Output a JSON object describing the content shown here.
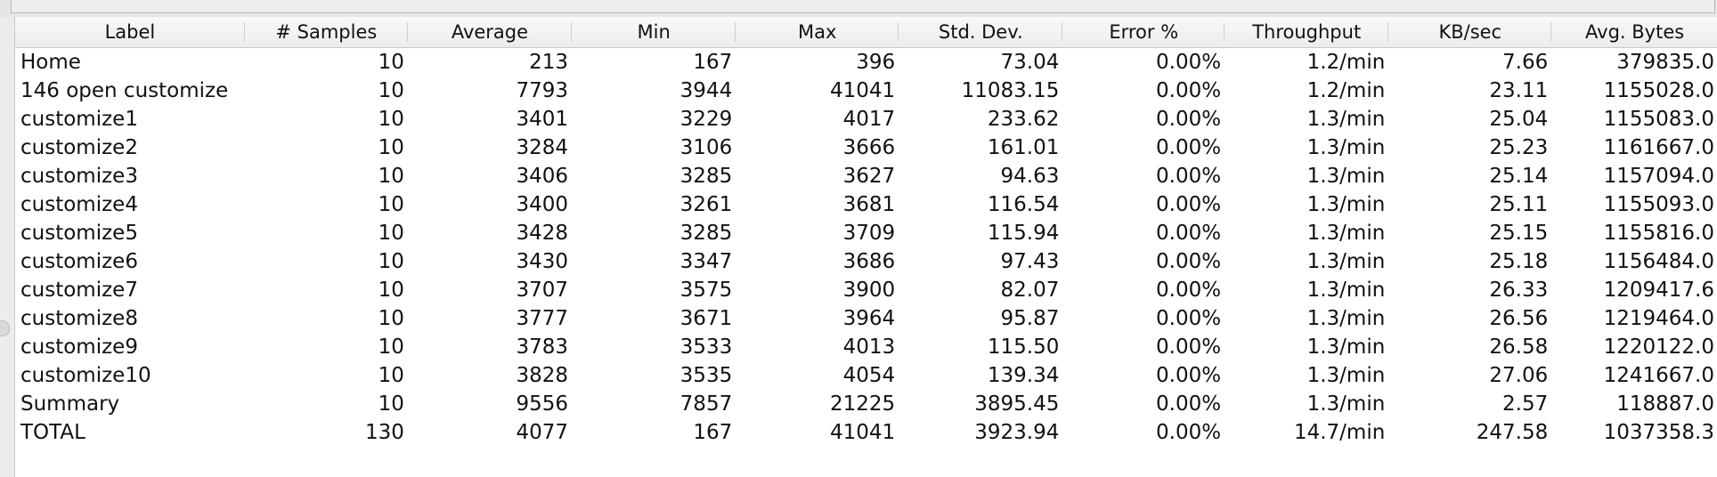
{
  "table": {
    "columns": [
      "Label",
      "# Samples",
      "Average",
      "Min",
      "Max",
      "Std. Dev.",
      "Error %",
      "Throughput",
      "KB/sec",
      "Avg. Bytes"
    ],
    "rows": [
      [
        "Home",
        "10",
        "213",
        "167",
        "396",
        "73.04",
        "0.00%",
        "1.2/min",
        "7.66",
        "379835.0"
      ],
      [
        "146 open customize",
        "10",
        "7793",
        "3944",
        "41041",
        "11083.15",
        "0.00%",
        "1.2/min",
        "23.11",
        "1155028.0"
      ],
      [
        "customize1",
        "10",
        "3401",
        "3229",
        "4017",
        "233.62",
        "0.00%",
        "1.3/min",
        "25.04",
        "1155083.0"
      ],
      [
        "customize2",
        "10",
        "3284",
        "3106",
        "3666",
        "161.01",
        "0.00%",
        "1.3/min",
        "25.23",
        "1161667.0"
      ],
      [
        "customize3",
        "10",
        "3406",
        "3285",
        "3627",
        "94.63",
        "0.00%",
        "1.3/min",
        "25.14",
        "1157094.0"
      ],
      [
        "customize4",
        "10",
        "3400",
        "3261",
        "3681",
        "116.54",
        "0.00%",
        "1.3/min",
        "25.11",
        "1155093.0"
      ],
      [
        "customize5",
        "10",
        "3428",
        "3285",
        "3709",
        "115.94",
        "0.00%",
        "1.3/min",
        "25.15",
        "1155816.0"
      ],
      [
        "customize6",
        "10",
        "3430",
        "3347",
        "3686",
        "97.43",
        "0.00%",
        "1.3/min",
        "25.18",
        "1156484.0"
      ],
      [
        "customize7",
        "10",
        "3707",
        "3575",
        "3900",
        "82.07",
        "0.00%",
        "1.3/min",
        "26.33",
        "1209417.6"
      ],
      [
        "customize8",
        "10",
        "3777",
        "3671",
        "3964",
        "95.87",
        "0.00%",
        "1.3/min",
        "26.56",
        "1219464.0"
      ],
      [
        "customize9",
        "10",
        "3783",
        "3533",
        "4013",
        "115.50",
        "0.00%",
        "1.3/min",
        "26.58",
        "1220122.0"
      ],
      [
        "customize10",
        "10",
        "3828",
        "3535",
        "4054",
        "139.34",
        "0.00%",
        "1.3/min",
        "27.06",
        "1241667.0"
      ],
      [
        "Summary",
        "10",
        "9556",
        "7857",
        "21225",
        "3895.45",
        "0.00%",
        "1.3/min",
        "2.57",
        "118887.0"
      ],
      [
        "TOTAL",
        "130",
        "4077",
        "167",
        "41041",
        "3923.94",
        "0.00%",
        "14.7/min",
        "247.58",
        "1037358.3"
      ]
    ]
  }
}
